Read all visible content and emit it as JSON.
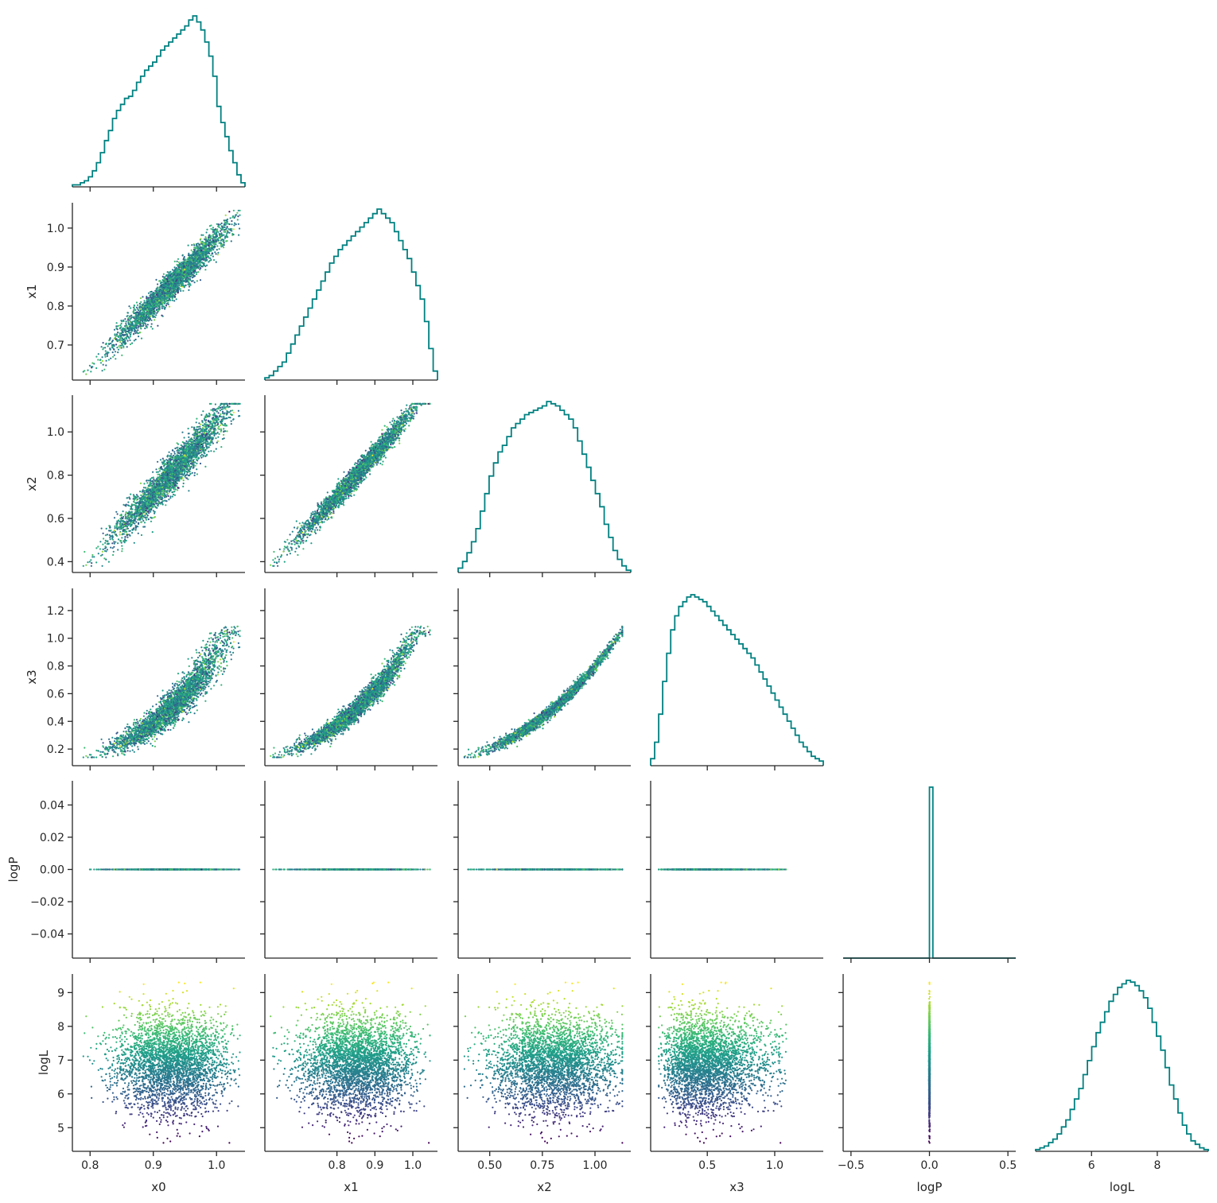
{
  "chart_data": {
    "type": "corner",
    "variables": [
      "x0",
      "x1",
      "x2",
      "x3",
      "logP",
      "logL"
    ],
    "axis_labels": {
      "x": [
        "x0",
        "x1",
        "x2",
        "x3",
        "logP",
        "logL"
      ],
      "y": [
        "",
        "x1",
        "x2",
        "x3",
        "logP",
        "logL"
      ]
    },
    "ranges": {
      "x0": [
        0.772,
        1.045
      ],
      "x1": [
        0.61,
        1.065
      ],
      "x2": [
        0.35,
        1.17
      ],
      "x3": [
        0.08,
        1.36
      ],
      "logP": [
        -0.055,
        0.055
      ],
      "logL": [
        4.3,
        9.55
      ]
    },
    "x_ticks": {
      "x0": [
        0.8,
        0.9,
        1.0
      ],
      "x1": [
        0.8,
        0.9,
        1.0
      ],
      "x2": [
        0.5,
        0.75,
        1.0
      ],
      "x3": [
        0.5,
        1.0
      ],
      "logP": [
        -0.5,
        0.0,
        0.5
      ],
      "logL": [
        6,
        8
      ]
    },
    "x_tick_labels": {
      "x0": [
        "0.8",
        "0.9",
        "1.0"
      ],
      "x1": [
        "0.8",
        "0.9",
        "1.0"
      ],
      "x2": [
        "0.50",
        "0.75",
        "1.00"
      ],
      "x3": [
        "0.5",
        "1.0"
      ],
      "logP": [
        "−0.5",
        "0.0",
        "0.5"
      ],
      "logL": [
        "6",
        "8"
      ]
    },
    "y_ticks": {
      "x1": [
        0.7,
        0.8,
        0.9,
        1.0
      ],
      "x2": [
        0.4,
        0.6,
        0.8,
        1.0
      ],
      "x3": [
        0.2,
        0.4,
        0.6,
        0.8,
        1.0,
        1.2
      ],
      "logP": [
        -0.04,
        -0.02,
        0.0,
        0.02,
        0.04
      ],
      "logL": [
        5,
        6,
        7,
        8,
        9
      ]
    },
    "y_tick_labels": {
      "x1": [
        "0.7",
        "0.8",
        "0.9",
        "1.0"
      ],
      "x2": [
        "0.4",
        "0.6",
        "0.8",
        "1.0"
      ],
      "x3": [
        "0.2",
        "0.4",
        "0.6",
        "0.8",
        "1.0",
        "1.2"
      ],
      "logP": [
        "−0.04",
        "−0.02",
        "0.00",
        "0.02",
        "0.04"
      ],
      "logL": [
        "5",
        "6",
        "7",
        "8",
        "9"
      ]
    },
    "hist_x_range_logP": [
      -0.55,
      0.55
    ],
    "histograms": {
      "x0": [
        1,
        1,
        2,
        3,
        5,
        8,
        12,
        17,
        23,
        28,
        34,
        38,
        41,
        44,
        45,
        48,
        52,
        55,
        58,
        60,
        62,
        65,
        68,
        70,
        72,
        74,
        76,
        78,
        80,
        83,
        85,
        82,
        78,
        72,
        65,
        55,
        40,
        32,
        25,
        18,
        12,
        6,
        2
      ],
      "x1": [
        1,
        2,
        4,
        6,
        8,
        12,
        16,
        20,
        24,
        28,
        32,
        36,
        40,
        44,
        48,
        52,
        55,
        58,
        60,
        62,
        64,
        66,
        68,
        70,
        72,
        74,
        76,
        74,
        72,
        70,
        66,
        62,
        58,
        54,
        48,
        42,
        36,
        26,
        14,
        4
      ],
      "x2": [
        2,
        5,
        9,
        14,
        20,
        28,
        36,
        44,
        50,
        55,
        58,
        62,
        66,
        68,
        70,
        72,
        73,
        74,
        75,
        76,
        78,
        77,
        76,
        74,
        72,
        70,
        66,
        60,
        54,
        48,
        42,
        36,
        30,
        22,
        16,
        10,
        6,
        3,
        1
      ],
      "x3": [
        3,
        10,
        22,
        36,
        48,
        58,
        64,
        68,
        70,
        72,
        73,
        72,
        71,
        70,
        68,
        66,
        64,
        62,
        60,
        58,
        56,
        54,
        52,
        50,
        48,
        46,
        43,
        40,
        37,
        34,
        31,
        28,
        25,
        22,
        19,
        16,
        13,
        10,
        8,
        6,
        4,
        3,
        2
      ],
      "logP": [
        0,
        0,
        0,
        0,
        0,
        0,
        0,
        0,
        0,
        0,
        0,
        0,
        0,
        0,
        0,
        0,
        0,
        0,
        0,
        0,
        0,
        0,
        0,
        0,
        0,
        100,
        0,
        0,
        0,
        0,
        0,
        0,
        0,
        0,
        0,
        0,
        0,
        0,
        0,
        0,
        0,
        0,
        0,
        0,
        0,
        0,
        0,
        0,
        0,
        0
      ],
      "logL": [
        1,
        2,
        3,
        5,
        7,
        10,
        14,
        18,
        24,
        30,
        36,
        44,
        52,
        60,
        68,
        74,
        80,
        86,
        90,
        94,
        96,
        98,
        97,
        95,
        92,
        88,
        82,
        74,
        66,
        58,
        48,
        38,
        30,
        22,
        15,
        10,
        6,
        4,
        2,
        1
      ]
    },
    "scatter_color": "viridis",
    "hist_color": "#008080",
    "grid": false,
    "legend": "none"
  }
}
